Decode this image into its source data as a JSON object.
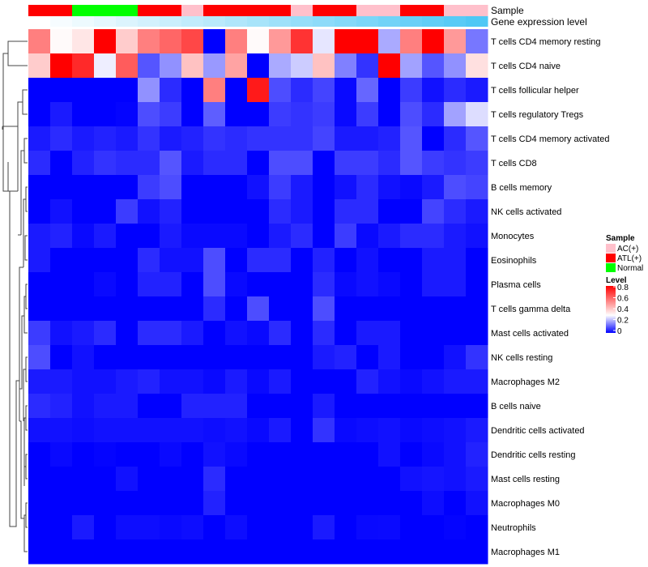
{
  "chart_data": {
    "type": "heatmap",
    "annotation_labels": {
      "sample": "Sample",
      "gene_expression": "Gene expression level"
    },
    "sample_groups": [
      "ATL(+)",
      "ATL(+)",
      "Normal",
      "Normal",
      "Normal",
      "ATL(+)",
      "ATL(+)",
      "AC(+)",
      "ATL(+)",
      "ATL(+)",
      "ATL(+)",
      "ATL(+)",
      "AC(+)",
      "ATL(+)",
      "ATL(+)",
      "AC(+)",
      "AC(+)",
      "ATL(+)",
      "ATL(+)",
      "AC(+)",
      "AC(+)"
    ],
    "gene_expression_level": [
      0,
      0.05,
      0.1,
      0.15,
      0.2,
      0.25,
      0.3,
      0.35,
      0.4,
      0.45,
      0.5,
      0.55,
      0.6,
      0.65,
      0.7,
      0.75,
      0.8,
      0.85,
      0.9,
      0.95,
      1
    ],
    "rows": [
      "T cells CD4 memory resting",
      "T cells CD4 naive",
      "T cells follicular helper",
      "T cells regulatory  Tregs",
      "T cells CD4 memory activated",
      "T cells CD8",
      "B cells memory",
      "NK cells activated",
      "Monocytes",
      "Eosinophils",
      "Plasma cells",
      "T cells gamma delta",
      "Mast cells activated",
      "NK cells resting",
      "Macrophages M2",
      "B cells naive",
      "Dendritic cells activated",
      "Dendritic cells resting",
      "Mast cells resting",
      "Macrophages M0",
      "Neutrophils",
      "Macrophages M1"
    ],
    "values": [
      [
        0.55,
        0.31,
        0.35,
        0.8,
        0.4,
        0.55,
        0.6,
        0.66,
        0,
        0.55,
        0.31,
        0.5,
        0.7,
        0.27,
        0.8,
        0.8,
        0.2,
        0.55,
        0.8,
        0.5,
        0.14
      ],
      [
        0.4,
        0.8,
        0.72,
        0.28,
        0.62,
        0.1,
        0.17,
        0.42,
        0.18,
        0.48,
        0,
        0.2,
        0.24,
        0.42,
        0.15,
        0.06,
        0.8,
        0.19,
        0.1,
        0.17,
        0.36
      ],
      [
        0,
        0,
        0,
        0,
        0,
        0.17,
        0.05,
        0,
        0.55,
        0,
        0.75,
        0.09,
        0.05,
        0.08,
        0.01,
        0.12,
        0,
        0.07,
        0.02,
        0.05,
        0.03
      ],
      [
        0,
        0.03,
        0,
        0,
        0.005,
        0.09,
        0.07,
        0,
        0.11,
        0,
        0,
        0.07,
        0.06,
        0.07,
        0.01,
        0.07,
        0,
        0.09,
        0.05,
        0.19,
        0.26
      ],
      [
        0.03,
        0.05,
        0.03,
        0.04,
        0.03,
        0.06,
        0.03,
        0.04,
        0.06,
        0.05,
        0.06,
        0.06,
        0.06,
        0.08,
        0.03,
        0.03,
        0.04,
        0.1,
        0,
        0.05,
        0.1
      ],
      [
        0.05,
        0,
        0.04,
        0.06,
        0.05,
        0.05,
        0.1,
        0.03,
        0.05,
        0.05,
        0,
        0.09,
        0.09,
        0,
        0.07,
        0.07,
        0.05,
        0.1,
        0.07,
        0.06,
        0.07
      ],
      [
        0,
        0,
        0,
        0,
        0,
        0.07,
        0.09,
        0,
        0,
        0,
        0.02,
        0.07,
        0.03,
        0,
        0.02,
        0.05,
        0.02,
        0.01,
        0.03,
        0.09,
        0.08
      ],
      [
        0,
        0.02,
        0,
        0,
        0.07,
        0.02,
        0.04,
        0,
        0,
        0,
        0,
        0.05,
        0.03,
        0,
        0.05,
        0.05,
        0,
        0,
        0.08,
        0.05,
        0.03
      ],
      [
        0.03,
        0.04,
        0.01,
        0.03,
        0,
        0,
        0.03,
        0.01,
        0.01,
        0.01,
        0,
        0.03,
        0.05,
        0,
        0.07,
        0.01,
        0.03,
        0.05,
        0.05,
        0.03,
        0.02
      ],
      [
        0.03,
        0,
        0,
        0,
        0,
        0.05,
        0.02,
        0.02,
        0.09,
        0,
        0.05,
        0.05,
        0,
        0.04,
        0,
        0.02,
        0,
        0,
        0.03,
        0.03,
        0
      ],
      [
        0,
        0,
        0,
        0.01,
        0,
        0.04,
        0.04,
        0,
        0.09,
        0.01,
        0,
        0,
        0,
        0.05,
        0.01,
        0.02,
        0.01,
        0,
        0.03,
        0.03,
        0
      ],
      [
        0,
        0,
        0,
        0,
        0,
        0,
        0,
        0,
        0.05,
        0,
        0.09,
        0,
        0,
        0.09,
        0,
        0,
        0,
        0,
        0,
        0,
        0
      ],
      [
        0.07,
        0.02,
        0.03,
        0.05,
        0,
        0.05,
        0.05,
        0.03,
        0,
        0.02,
        0.01,
        0.05,
        0,
        0.05,
        0,
        0.03,
        0.03,
        0,
        0,
        0,
        0
      ],
      [
        0.09,
        0,
        0.02,
        0,
        0,
        0,
        0,
        0,
        0,
        0,
        0,
        0,
        0,
        0.03,
        0.04,
        0,
        0.03,
        0,
        0,
        0.02,
        0.06
      ],
      [
        0.03,
        0.03,
        0.02,
        0.02,
        0.03,
        0.04,
        0.02,
        0.02,
        0.01,
        0.03,
        0.01,
        0.03,
        0,
        0,
        0,
        0.04,
        0.02,
        0.01,
        0.02,
        0.03,
        0.03
      ],
      [
        0.05,
        0.04,
        0.02,
        0.03,
        0.03,
        0,
        0,
        0.04,
        0.04,
        0.04,
        0,
        0,
        0,
        0.03,
        0,
        0,
        0,
        0,
        0,
        0,
        0
      ],
      [
        0.02,
        0.02,
        0.015,
        0.02,
        0.02,
        0.02,
        0.02,
        0.02,
        0.015,
        0.02,
        0.01,
        0.03,
        0,
        0.06,
        0.01,
        0.015,
        0.02,
        0.01,
        0.015,
        0.02,
        0.03
      ],
      [
        0,
        0.01,
        0,
        0.005,
        0,
        0,
        0.01,
        0,
        0.02,
        0.01,
        0,
        0,
        0,
        0,
        0,
        0,
        0.02,
        0,
        0.01,
        0.02,
        0.04
      ],
      [
        0,
        0,
        0,
        0,
        0.02,
        0,
        0,
        0,
        0.05,
        0,
        0,
        0,
        0,
        0,
        0,
        0,
        0,
        0.02,
        0.025,
        0.02,
        0.03
      ],
      [
        0,
        0,
        0,
        0,
        0,
        0,
        0,
        0,
        0.04,
        0,
        0,
        0,
        0,
        0,
        0,
        0,
        0,
        0,
        0.015,
        0,
        0.02
      ],
      [
        0,
        0,
        0.03,
        0,
        0.015,
        0.015,
        0.01,
        0.015,
        0,
        0.015,
        0,
        0,
        0,
        0.03,
        0,
        0.01,
        0.012,
        0,
        0,
        0.005,
        0
      ],
      [
        0,
        0,
        0,
        0,
        0,
        0,
        0,
        0,
        0,
        0,
        0,
        0,
        0,
        0,
        0,
        0,
        0,
        0,
        0,
        0,
        0
      ]
    ],
    "color_scale": {
      "low": "#0000FF",
      "mid": "#FFFFFF",
      "high": "#FF0000",
      "range": [
        0,
        0.8
      ],
      "midpoint": 0.3
    },
    "legend": {
      "sample_title": "Sample",
      "sample_items": [
        {
          "label": "AC(+)",
          "color": "#FFC0CB"
        },
        {
          "label": "ATL(+)",
          "color": "#FF0000"
        },
        {
          "label": "Normal",
          "color": "#00FF00"
        }
      ],
      "level_title": "Level",
      "level_ticks": [
        "0.8",
        "0.6",
        "0.4",
        "0.2",
        "0"
      ],
      "placement": "right"
    },
    "gene_expression_colors": {
      "low": "#FFFFFF",
      "high": "#4FC8F5"
    }
  }
}
